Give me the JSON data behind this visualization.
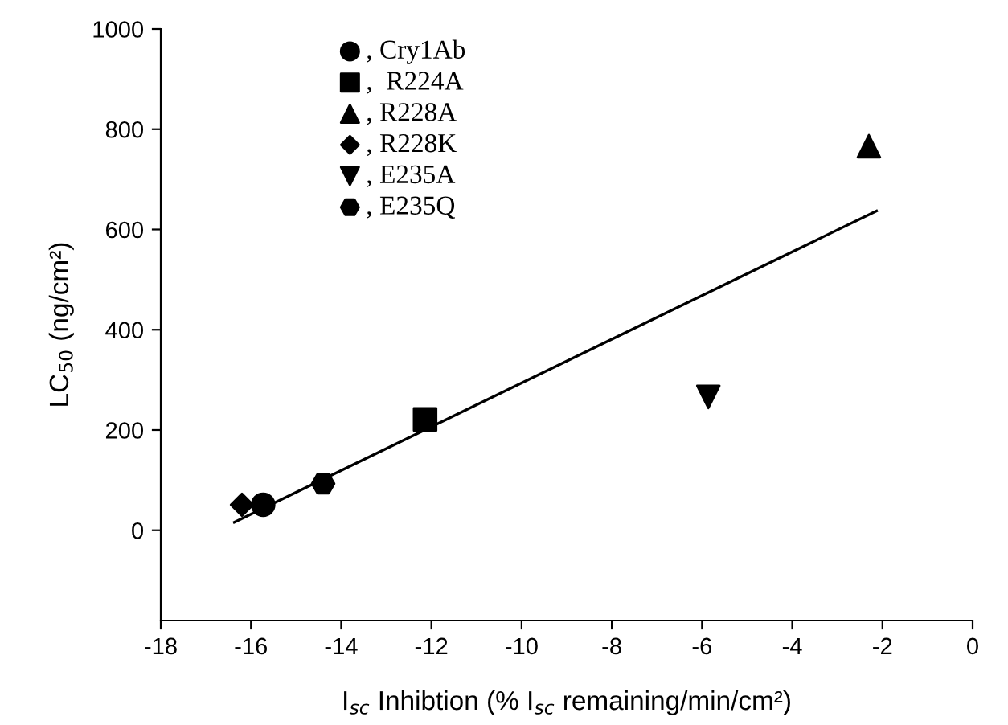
{
  "chart_data": {
    "type": "scatter",
    "xlabel": "I$_{sc}$ Inhibtion (% I$_{sc}$ remaining/min/cm²)",
    "ylabel": "LC$_{50}$ (ng/cm²)",
    "series": [
      {
        "name": ", Cry1Ab",
        "color": "#000000",
        "marker": "circle",
        "x": [
          -15.73
        ],
        "values": [
          51
        ]
      },
      {
        "name": ",  R224A",
        "color": "#000000",
        "marker": "square",
        "x": [
          -12.14
        ],
        "values": [
          221
        ]
      },
      {
        "name": ", R228A",
        "color": "#000000",
        "marker": "triangle",
        "x": [
          -2.3
        ],
        "values": [
          766
        ]
      },
      {
        "name": ", R228K",
        "color": "#000000",
        "marker": "diamond",
        "x": [
          -16.2
        ],
        "values": [
          51
        ]
      },
      {
        "name": ", E235A",
        "color": "#000000",
        "marker": "triangle_down",
        "x": [
          -5.86
        ],
        "values": [
          266
        ]
      },
      {
        "name": ", E235Q",
        "color": "#000000",
        "x": [
          -14.4
        ],
        "values": [
          93
        ]
      },
      {
        "type": "line",
        "color": "#000000",
        "marker": "none",
        "line_style": "solid",
        "x": [
          -16.37,
          -2.13
        ],
        "values": [
          16,
          637
        ]
      }
    ],
    "xlim": [
      -18,
      0
    ],
    "xticks": [
      -18,
      -16,
      -14,
      -12,
      -10,
      -8,
      -6,
      -4,
      -2,
      0
    ],
    "ylim": [
      -180,
      1000
    ],
    "yticks": [
      0,
      200,
      400,
      600,
      800,
      1000
    ],
    "grid": false,
    "legend": "top left"
  }
}
